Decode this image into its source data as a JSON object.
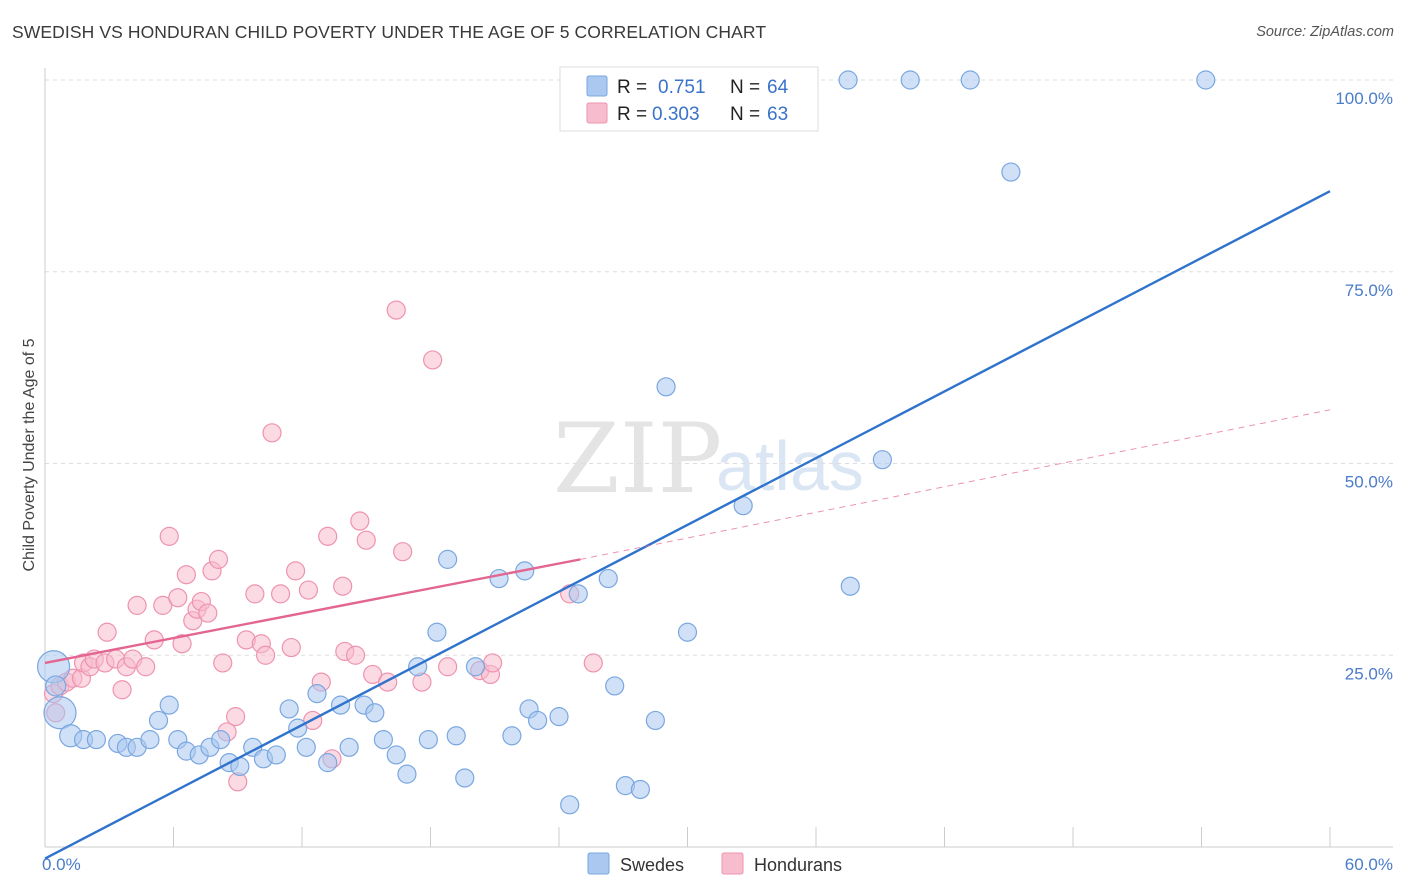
{
  "title": "SWEDISH VS HONDURAN CHILD POVERTY UNDER THE AGE OF 5 CORRELATION CHART",
  "source": "Source: ZipAtlas.com",
  "colors": {
    "swedes_fill": "#aac8f0",
    "swedes_stroke": "#7aa7e0",
    "swedes_line": "#2f73cc",
    "hondurans_fill": "#f7bccd",
    "hondurans_stroke": "#ee93ae",
    "hondurans_line": "#e36591",
    "tick_text": "#4a7cc9",
    "grid": "#dddddd"
  },
  "legend": {
    "swedes": {
      "r_label": "R =",
      "r_value": "0.751",
      "n_label": "N =",
      "n_value": "64"
    },
    "hondurans": {
      "r_label": "R =",
      "r_value": "0.303",
      "n_label": "N =",
      "n_value": "63"
    }
  },
  "watermark": {
    "zip": "ZIP",
    "atlas": "atlas"
  },
  "chart_data": {
    "type": "scatter",
    "title": "SWEDISH VS HONDURAN CHILD POVERTY UNDER THE AGE OF 5 CORRELATION CHART",
    "xlabel": "",
    "ylabel": "Child Poverty Under the Age of 5",
    "xlim": [
      0,
      60
    ],
    "ylim": [
      0,
      100
    ],
    "x_ticks": [
      "0.0%",
      "60.0%"
    ],
    "y_ticks": [
      "25.0%",
      "50.0%",
      "75.0%",
      "100.0%"
    ],
    "y_tick_values": [
      25,
      50,
      75,
      100
    ],
    "grid": true,
    "legend_position": "top-center",
    "series": [
      {
        "name": "Swedes",
        "r": 0.751,
        "n": 64,
        "trend": {
          "x0": 0,
          "y0": -1.5,
          "x1": 60,
          "y1": 85.5
        },
        "points": [
          [
            0.4,
            23.5,
            16
          ],
          [
            0.7,
            17.5,
            16
          ],
          [
            0.5,
            21,
            10
          ],
          [
            1.2,
            14.5,
            11
          ],
          [
            1.8,
            14,
            9
          ],
          [
            2.4,
            14,
            9
          ],
          [
            3.4,
            13.5,
            9
          ],
          [
            3.8,
            13,
            9
          ],
          [
            4.3,
            13,
            9
          ],
          [
            4.9,
            14,
            9
          ],
          [
            5.3,
            16.5,
            9
          ],
          [
            5.8,
            18.5,
            9
          ],
          [
            6.2,
            14,
            9
          ],
          [
            6.6,
            12.5,
            9
          ],
          [
            7.2,
            12,
            9
          ],
          [
            7.7,
            13,
            9
          ],
          [
            8.2,
            14,
            9
          ],
          [
            8.6,
            11,
            9
          ],
          [
            9.1,
            10.5,
            9
          ],
          [
            9.7,
            13,
            9
          ],
          [
            10.2,
            11.5,
            9
          ],
          [
            10.8,
            12,
            9
          ],
          [
            11.4,
            18,
            9
          ],
          [
            11.8,
            15.5,
            9
          ],
          [
            12.2,
            13,
            9
          ],
          [
            12.7,
            20,
            9
          ],
          [
            13.2,
            11,
            9
          ],
          [
            13.8,
            18.5,
            9
          ],
          [
            14.2,
            13,
            9
          ],
          [
            14.9,
            18.5,
            9
          ],
          [
            15.4,
            17.5,
            9
          ],
          [
            15.8,
            14,
            9
          ],
          [
            16.4,
            12,
            9
          ],
          [
            16.9,
            9.5,
            9
          ],
          [
            17.4,
            23.5,
            9
          ],
          [
            17.9,
            14,
            9
          ],
          [
            18.3,
            28,
            9
          ],
          [
            18.8,
            37.5,
            9
          ],
          [
            19.2,
            14.5,
            9
          ],
          [
            19.6,
            9,
            9
          ],
          [
            20.1,
            23.5,
            9
          ],
          [
            21.2,
            35,
            9
          ],
          [
            21.8,
            14.5,
            9
          ],
          [
            22.6,
            18,
            9
          ],
          [
            23,
            16.5,
            9
          ],
          [
            22.4,
            36,
            9
          ],
          [
            24,
            17,
            9
          ],
          [
            24.5,
            5.5,
            9
          ],
          [
            24.9,
            33,
            9
          ],
          [
            26.3,
            35,
            9
          ],
          [
            26.6,
            21,
            9
          ],
          [
            27.1,
            8,
            9
          ],
          [
            27.8,
            7.5,
            9
          ],
          [
            28.5,
            16.5,
            9
          ],
          [
            29,
            60,
            9
          ],
          [
            30,
            28,
            9
          ],
          [
            32.6,
            44.5,
            9
          ],
          [
            37.6,
            34,
            9
          ],
          [
            39.1,
            50.5,
            9
          ],
          [
            37.5,
            100,
            9
          ],
          [
            40.4,
            100,
            9
          ],
          [
            43.2,
            100,
            9
          ],
          [
            45.1,
            88,
            9
          ],
          [
            54.2,
            100,
            9
          ]
        ]
      },
      {
        "name": "Hondurans",
        "r": 0.303,
        "n": 63,
        "trend": {
          "x0": 0,
          "y0": 24,
          "x1": 25,
          "y1": 37.5
        },
        "trend_extension": {
          "x0": 25,
          "y0": 37.5,
          "x1": 60,
          "y1": 57
        },
        "points": [
          [
            0.4,
            20,
            9
          ],
          [
            0.5,
            17.5,
            9
          ],
          [
            0.7,
            21,
            9
          ],
          [
            1,
            21.5,
            9
          ],
          [
            1.3,
            22,
            9
          ],
          [
            1.7,
            22,
            9
          ],
          [
            1.8,
            24,
            9
          ],
          [
            2.1,
            23.5,
            9
          ],
          [
            2.3,
            24.5,
            9
          ],
          [
            2.8,
            24,
            9
          ],
          [
            2.9,
            28,
            9
          ],
          [
            3.3,
            24.5,
            9
          ],
          [
            3.6,
            20.5,
            9
          ],
          [
            3.8,
            23.5,
            9
          ],
          [
            4.1,
            24.5,
            9
          ],
          [
            4.3,
            31.5,
            9
          ],
          [
            4.7,
            23.5,
            9
          ],
          [
            5.1,
            27,
            9
          ],
          [
            5.5,
            31.5,
            9
          ],
          [
            5.8,
            40.5,
            9
          ],
          [
            6.2,
            32.5,
            9
          ],
          [
            6.4,
            26.5,
            9
          ],
          [
            6.6,
            35.5,
            9
          ],
          [
            6.9,
            29.5,
            9
          ],
          [
            7.1,
            31,
            9
          ],
          [
            7.3,
            32,
            9
          ],
          [
            7.6,
            30.5,
            9
          ],
          [
            7.8,
            36,
            9
          ],
          [
            8.1,
            37.5,
            9
          ],
          [
            8.3,
            24,
            9
          ],
          [
            8.5,
            15,
            9
          ],
          [
            8.9,
            17,
            9
          ],
          [
            9,
            8.5,
            9
          ],
          [
            9.4,
            27,
            9
          ],
          [
            9.8,
            33,
            9
          ],
          [
            10.1,
            26.5,
            9
          ],
          [
            10.3,
            25,
            9
          ],
          [
            10.6,
            54,
            9
          ],
          [
            11,
            33,
            9
          ],
          [
            11.5,
            26,
            9
          ],
          [
            11.7,
            36,
            9
          ],
          [
            12.3,
            33.5,
            9
          ],
          [
            12.5,
            16.5,
            9
          ],
          [
            12.9,
            21.5,
            9
          ],
          [
            13.2,
            40.5,
            9
          ],
          [
            13.4,
            11.5,
            9
          ],
          [
            13.9,
            34,
            9
          ],
          [
            14,
            25.5,
            9
          ],
          [
            14.5,
            25,
            9
          ],
          [
            14.7,
            42.5,
            9
          ],
          [
            15,
            40,
            9
          ],
          [
            15.3,
            22.5,
            9
          ],
          [
            16,
            21.5,
            9
          ],
          [
            16.4,
            70,
            9
          ],
          [
            16.7,
            38.5,
            9
          ],
          [
            17.6,
            21.5,
            9
          ],
          [
            18.1,
            63.5,
            9
          ],
          [
            18.8,
            23.5,
            9
          ],
          [
            20.3,
            23,
            9
          ],
          [
            20.8,
            22.5,
            9
          ],
          [
            20.9,
            24,
            9
          ],
          [
            24.5,
            33,
            9
          ],
          [
            25.6,
            24,
            9
          ]
        ]
      }
    ]
  }
}
